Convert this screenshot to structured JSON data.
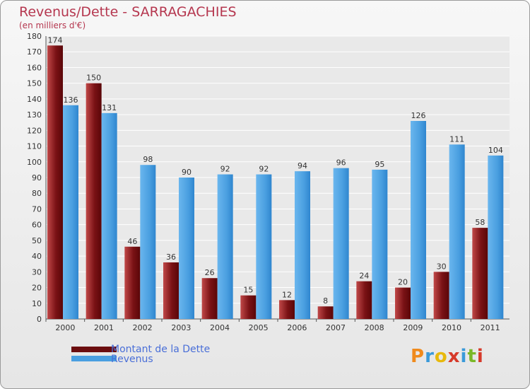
{
  "chart_data": {
    "type": "bar",
    "title": "Revenus/Dette - SARRAGACHIES",
    "subtitle": "(en milliers d'€)",
    "categories": [
      "2000",
      "2001",
      "2002",
      "2003",
      "2004",
      "2005",
      "2006",
      "2007",
      "2008",
      "2009",
      "2010",
      "2011"
    ],
    "series": [
      {
        "name": "Montant de la Dette",
        "color": "#6b0d0f",
        "values": [
          174,
          150,
          46,
          36,
          26,
          15,
          12,
          8,
          24,
          20,
          30,
          58
        ]
      },
      {
        "name": "Revenus",
        "color": "#4a9fe0",
        "values": [
          136,
          131,
          98,
          90,
          92,
          92,
          94,
          96,
          95,
          126,
          111,
          104
        ]
      }
    ],
    "ylim": [
      0,
      180
    ],
    "ytick_step": 10,
    "grid": true,
    "legend_position": "bottom-left"
  },
  "logo": {
    "text": "Proxiti",
    "colors": [
      "#f08a1c",
      "#3a9ad9",
      "#e8b90c",
      "#d63a2a",
      "#3a9ad9",
      "#7ab828",
      "#d63a2a"
    ]
  }
}
